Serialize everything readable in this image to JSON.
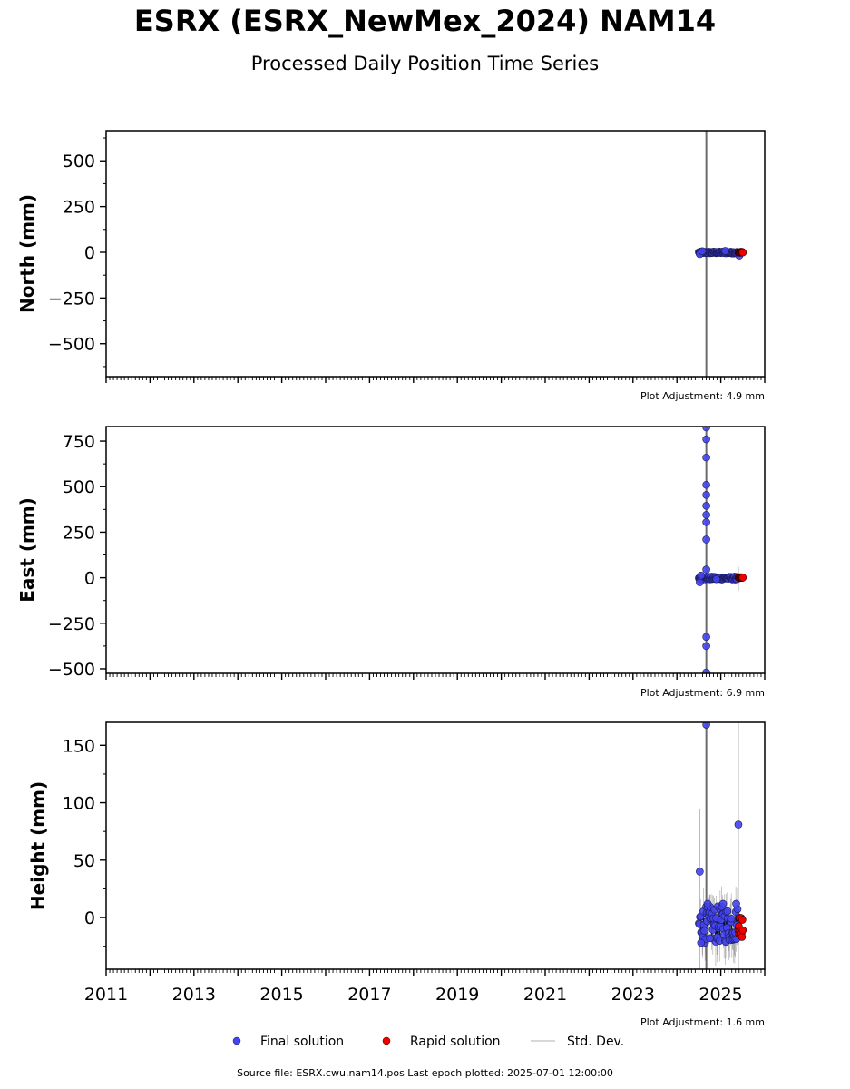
{
  "title": "ESRX (ESRX_NewMex_2024) NAM14",
  "subtitle": "Processed Daily Position Time Series",
  "footer": "Source file: ESRX.cwu.nam14.pos  Last epoch plotted: 2025-07-01 12:00:00",
  "legend": {
    "final": "Final solution",
    "rapid": "Rapid solution",
    "std": "Std. Dev."
  },
  "colors": {
    "final": "#4444ee",
    "rapid": "#ee0000",
    "std": "#bbbbbb",
    "vline": "#6a6a6a"
  },
  "chart_data": [
    {
      "type": "scatter",
      "ylabel": "North (mm)",
      "adjustment": "Plot Adjustment: 4.9 mm",
      "xlim": [
        2011,
        2026
      ],
      "ylim": [
        -680,
        665
      ],
      "yticks": [
        -500,
        -250,
        0,
        250,
        500
      ],
      "ytick_labels": [
        "−500",
        "−250",
        "0",
        "250",
        "500"
      ],
      "vline_x": 2024.67,
      "final": {
        "x_start": 2024.5,
        "x_end": 2025.38,
        "y_base": -1,
        "spread": 5,
        "extra": [
          [
            2024.52,
            -10
          ],
          [
            2024.58,
            6
          ],
          [
            2025.42,
            -18
          ],
          [
            2025.1,
            8
          ]
        ]
      },
      "rapid": {
        "x_start": 2025.4,
        "x_end": 2025.5,
        "y_base": 0,
        "spread": 3,
        "extra": []
      },
      "std": {
        "extra": []
      }
    },
    {
      "type": "scatter",
      "ylabel": "East (mm)",
      "adjustment": "Plot Adjustment: 6.9 mm",
      "xlim": [
        2011,
        2026
      ],
      "ylim": [
        -525,
        830
      ],
      "yticks": [
        -500,
        -250,
        0,
        250,
        500,
        750
      ],
      "ytick_labels": [
        "−500",
        "−250",
        "0",
        "250",
        "500",
        "750"
      ],
      "vline_x": 2024.67,
      "final": {
        "x_start": 2024.5,
        "x_end": 2025.38,
        "y_base": -2,
        "spread": 8,
        "extra": [
          [
            2024.67,
            825
          ],
          [
            2024.67,
            760
          ],
          [
            2024.67,
            660
          ],
          [
            2024.67,
            510
          ],
          [
            2024.67,
            455
          ],
          [
            2024.67,
            395
          ],
          [
            2024.67,
            345
          ],
          [
            2024.67,
            305
          ],
          [
            2024.67,
            210
          ],
          [
            2024.67,
            45
          ],
          [
            2024.67,
            -325
          ],
          [
            2024.67,
            -375
          ],
          [
            2024.67,
            -520
          ],
          [
            2024.52,
            -25
          ],
          [
            2024.55,
            12
          ],
          [
            2024.9,
            -8
          ]
        ]
      },
      "rapid": {
        "x_start": 2025.4,
        "x_end": 2025.5,
        "y_base": 0,
        "spread": 3,
        "extra": []
      },
      "std": {
        "extra": [
          [
            2025.4,
            -70,
            60
          ]
        ]
      }
    },
    {
      "type": "scatter",
      "ylabel": "Height (mm)",
      "adjustment": "Plot Adjustment: 1.6 mm",
      "xlim": [
        2011,
        2026
      ],
      "ylim": [
        -45,
        170
      ],
      "yticks": [
        0,
        50,
        100,
        150
      ],
      "ytick_labels": [
        "0",
        "50",
        "100",
        "150"
      ],
      "vline_x": 2024.67,
      "xticks": [
        2011,
        2013,
        2015,
        2017,
        2019,
        2021,
        2023,
        2025
      ],
      "xtick_labels": [
        "2011",
        "2013",
        "2015",
        "2017",
        "2019",
        "2021",
        "2023",
        "2025"
      ],
      "final": {
        "x_start": 2024.5,
        "x_end": 2025.38,
        "y_base": -6,
        "spread": 16,
        "extra": [
          [
            2024.52,
            40
          ],
          [
            2024.67,
            168
          ],
          [
            2025.4,
            81
          ],
          [
            2024.7,
            12
          ],
          [
            2024.55,
            -22
          ],
          [
            2024.75,
            -18
          ],
          [
            2025.05,
            12
          ],
          [
            2025.35,
            12
          ]
        ]
      },
      "rapid": {
        "x_start": 2025.4,
        "x_end": 2025.5,
        "y_base": -7,
        "spread": 10,
        "extra": []
      },
      "std": {
        "extra": [
          [
            2024.52,
            -45,
            95
          ],
          [
            2025.4,
            -45,
            170
          ]
        ]
      }
    }
  ]
}
